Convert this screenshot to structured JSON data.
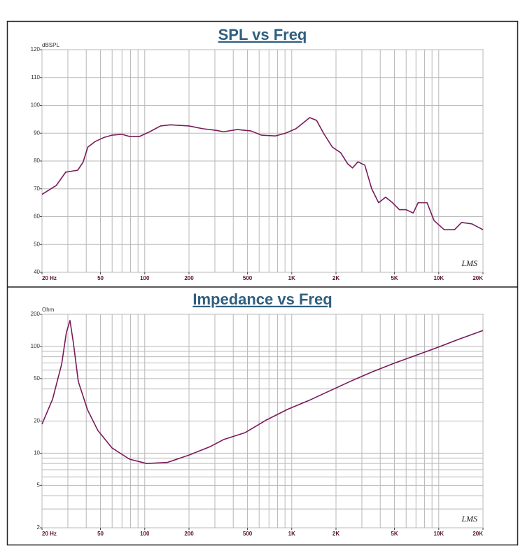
{
  "chart_data": [
    {
      "type": "line",
      "title": "SPL vs Freq",
      "y_unit": "dBSPL",
      "annotation": "LMS",
      "x_scale": "log",
      "y_scale": "linear",
      "color": "#7a1a5a",
      "xlim": [
        20,
        20000
      ],
      "ylim": [
        40,
        120
      ],
      "xticks": [
        {
          "value": 20,
          "label": "20 Hz"
        },
        50,
        100,
        200,
        500,
        {
          "value": 1000,
          "label": "1K"
        },
        {
          "value": 2000,
          "label": "2K"
        },
        {
          "value": 5000,
          "label": "5K"
        },
        {
          "value": 10000,
          "label": "10K"
        },
        {
          "value": 20000,
          "label": "20K"
        }
      ],
      "yticks": [
        40,
        50,
        60,
        70,
        80,
        90,
        100,
        110,
        120
      ],
      "xgrid": [
        20,
        30,
        40,
        50,
        60,
        70,
        80,
        90,
        100,
        200,
        300,
        400,
        500,
        600,
        700,
        800,
        900,
        1000,
        2000,
        3000,
        4000,
        5000,
        6000,
        7000,
        8000,
        9000,
        10000,
        20000
      ],
      "ygrid": [
        40,
        50,
        60,
        70,
        80,
        90,
        100,
        110,
        120
      ],
      "x": [
        20,
        25,
        29,
        35,
        38,
        41,
        46,
        53,
        60,
        70,
        79,
        92,
        108,
        128,
        150,
        200,
        248,
        308,
        343,
        426,
        528,
        621,
        772,
        908,
        1067,
        1190,
        1325,
        1475,
        1645,
        1888,
        2150,
        2400,
        2590,
        2820,
        3140,
        3500,
        3900,
        4350,
        4850,
        5400,
        6000,
        6700,
        7240,
        8330,
        9290,
        10900,
        12800,
        14300,
        16800,
        20000
      ],
      "values": [
        68,
        71.2,
        76,
        76.7,
        79.5,
        85,
        87,
        88.5,
        89.3,
        89.6,
        88.8,
        88.8,
        90.5,
        92.6,
        93,
        92.6,
        91.6,
        91,
        90.5,
        91.3,
        90.8,
        89.3,
        89,
        90,
        91.6,
        93.6,
        95.6,
        94.6,
        90,
        85,
        83,
        79,
        77.5,
        79.7,
        78.5,
        70,
        65,
        67,
        65,
        62.5,
        62.5,
        61.3,
        65,
        65,
        58.6,
        55.3,
        55.3,
        57.9,
        57.4,
        55.3
      ]
    },
    {
      "type": "line",
      "title": "Impedance vs Freq",
      "y_unit": "Ohm",
      "annotation": "LMS",
      "x_scale": "log",
      "y_scale": "log",
      "color": "#7a1a5a",
      "xlim": [
        20,
        20000
      ],
      "ylim": [
        2,
        200
      ],
      "xticks": [
        {
          "value": 20,
          "label": "20 Hz"
        },
        50,
        100,
        200,
        500,
        {
          "value": 1000,
          "label": "1K"
        },
        {
          "value": 2000,
          "label": "2K"
        },
        {
          "value": 5000,
          "label": "5K"
        },
        {
          "value": 10000,
          "label": "10K"
        },
        {
          "value": 20000,
          "label": "20K"
        }
      ],
      "yticks": [
        2,
        5,
        10,
        20,
        50,
        100,
        200
      ],
      "xgrid": [
        20,
        30,
        40,
        50,
        60,
        70,
        80,
        90,
        100,
        200,
        300,
        400,
        500,
        600,
        700,
        800,
        900,
        1000,
        2000,
        3000,
        4000,
        5000,
        6000,
        7000,
        8000,
        9000,
        10000,
        20000
      ],
      "ygrid": [
        2,
        3,
        4,
        5,
        6,
        7,
        8,
        9,
        10,
        20,
        30,
        40,
        50,
        60,
        70,
        80,
        90,
        100,
        200
      ],
      "x": [
        20,
        23.6,
        27.2,
        29.3,
        31,
        32.7,
        35.3,
        40.8,
        48,
        59.9,
        78.6,
        103,
        143,
        200,
        278,
        343,
        483,
        674,
        940,
        1310,
        1830,
        2550,
        3550,
        4960,
        6920,
        9660,
        13500,
        20000
      ],
      "values": [
        18.7,
        32,
        68,
        135,
        175,
        108,
        47,
        25.5,
        16.3,
        11.2,
        8.8,
        8.0,
        8.2,
        9.6,
        11.5,
        13.4,
        15.6,
        20.5,
        25.8,
        31.2,
        38.6,
        47.6,
        58,
        69.5,
        82,
        97,
        116,
        141
      ]
    }
  ]
}
